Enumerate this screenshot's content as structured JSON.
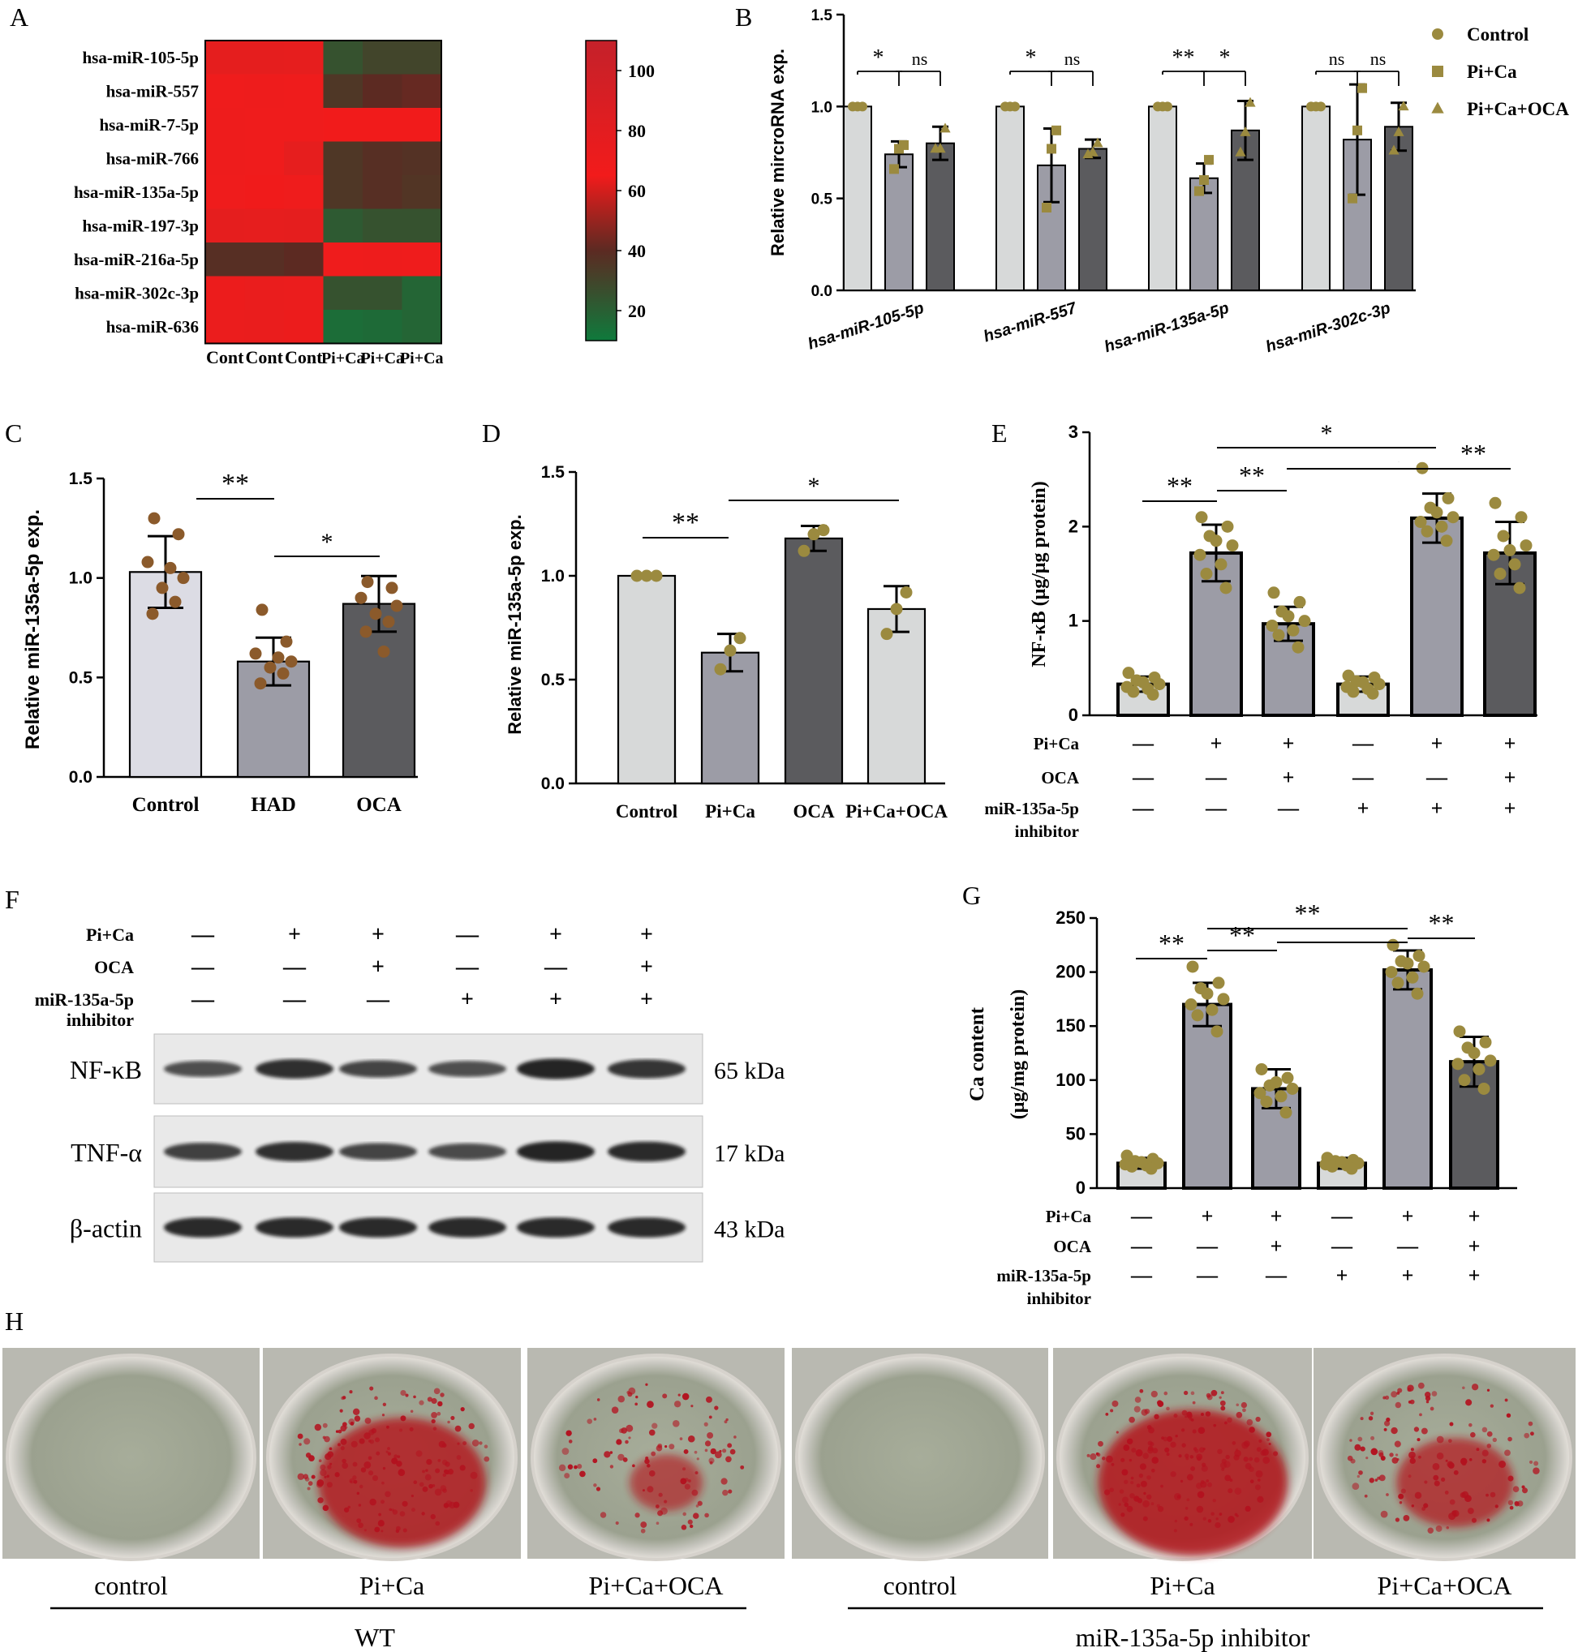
{
  "panel_letters": [
    "A",
    "B",
    "C",
    "D",
    "E",
    "F",
    "G",
    "H"
  ],
  "colors": {
    "bar_light": "#d7d9d9",
    "bar_mid": "#9c9ca6",
    "bar_dark": "#5b5b5e",
    "bar_control_c": "#dcdce4",
    "point_olive": "#9b8a3f",
    "point_brown": "#8b5a2b",
    "heat_low": "#0f7a3c",
    "heat_mid": "#5c2a22",
    "heat_high": "#f21b1b",
    "stain": "#b3121f"
  },
  "chart_data": [
    {
      "panel": "A",
      "type": "heatmap",
      "rows": [
        "hsa-miR-105-5p",
        "hsa-miR-557",
        "hsa-miR-7-5p",
        "hsa-miR-766",
        "hsa-miR-135a-5p",
        "hsa-miR-197-3p",
        "hsa-miR-216a-5p",
        "hsa-miR-302c-3p",
        "hsa-miR-636"
      ],
      "columns": [
        "Cont",
        "Cont",
        "Cont",
        "Pi+Ca",
        "Pi+Ca",
        "Pi+Ca"
      ],
      "values": [
        [
          108,
          106,
          104,
          25,
          30,
          30
        ],
        [
          80,
          82,
          78,
          35,
          40,
          42
        ],
        [
          82,
          78,
          80,
          72,
          72,
          72
        ],
        [
          82,
          80,
          105,
          35,
          38,
          37
        ],
        [
          78,
          76,
          80,
          35,
          38,
          36
        ],
        [
          108,
          104,
          106,
          22,
          25,
          25
        ],
        [
          38,
          38,
          40,
          78,
          82,
          78
        ],
        [
          88,
          92,
          90,
          25,
          25,
          18
        ],
        [
          90,
          92,
          88,
          15,
          16,
          18
        ]
      ],
      "colorbar_ticks": [
        "100",
        "80",
        "60",
        "40",
        "20"
      ],
      "colorbar_values": [
        100,
        80,
        60,
        40,
        20
      ],
      "range": [
        10,
        110
      ]
    },
    {
      "panel": "B",
      "type": "bar",
      "ylabel": "Relative mircroRNA exp.",
      "ylim": [
        0,
        1.5
      ],
      "yticks": [
        "0.0",
        "0.5",
        "1.0",
        "1.5"
      ],
      "categories": [
        "hsa-miR-105-5p",
        "hsa-miR-557",
        "hsa-miR-135a-5p",
        "hsa-miR-302c-3p"
      ],
      "series": [
        {
          "name": "Control",
          "values": [
            1.0,
            1.0,
            1.0,
            1.0
          ],
          "err": [
            0,
            0,
            0,
            0
          ],
          "points": [
            [
              1,
              1,
              1
            ],
            [
              1,
              1,
              1
            ],
            [
              1,
              1,
              1
            ],
            [
              1,
              1,
              1
            ]
          ]
        },
        {
          "name": "Pi+Ca",
          "values": [
            0.74,
            0.68,
            0.61,
            0.82
          ],
          "err": [
            0.07,
            0.2,
            0.08,
            0.3
          ],
          "points": [
            [
              0.66,
              0.77,
              0.79
            ],
            [
              0.45,
              0.77,
              0.87
            ],
            [
              0.54,
              0.6,
              0.71
            ],
            [
              0.5,
              0.87,
              1.1
            ]
          ]
        },
        {
          "name": "Pi+Ca+OCA",
          "values": [
            0.8,
            0.77,
            0.87,
            0.89
          ],
          "err": [
            0.09,
            0.05,
            0.16,
            0.13
          ],
          "points": [
            [
              0.77,
              0.77,
              0.88
            ],
            [
              0.74,
              0.75,
              0.8
            ],
            [
              0.75,
              0.86,
              1.02
            ],
            [
              0.76,
              0.86,
              1.0
            ]
          ]
        }
      ],
      "significance": [
        {
          "label": "*",
          "group": 0,
          "pair": [
            0,
            1
          ]
        },
        {
          "label": "ns",
          "group": 0,
          "pair": [
            1,
            2
          ]
        },
        {
          "label": "*",
          "group": 1,
          "pair": [
            0,
            1
          ]
        },
        {
          "label": "ns",
          "group": 1,
          "pair": [
            1,
            2
          ]
        },
        {
          "label": "**",
          "group": 2,
          "pair": [
            0,
            1
          ]
        },
        {
          "label": "*",
          "group": 2,
          "pair": [
            1,
            2
          ]
        },
        {
          "label": "ns",
          "group": 3,
          "pair": [
            0,
            1
          ]
        },
        {
          "label": "ns",
          "group": 3,
          "pair": [
            1,
            2
          ]
        }
      ],
      "legend": [
        "Control",
        "Pi+Ca",
        "Pi+Ca+OCA"
      ]
    },
    {
      "panel": "C",
      "type": "bar",
      "ylabel": "Relative miR-135a-5p exp.",
      "ylim": [
        0,
        1.5
      ],
      "yticks": [
        "0.0",
        "0.5",
        "1.0",
        "1.5"
      ],
      "categories": [
        "Control",
        "HAD",
        "OCA"
      ],
      "values": [
        1.03,
        0.58,
        0.87
      ],
      "err": [
        0.18,
        0.12,
        0.14
      ],
      "points": [
        [
          1.3,
          1.22,
          1.08,
          1.0,
          0.95,
          0.88,
          0.82,
          1.05
        ],
        [
          0.84,
          0.68,
          0.62,
          0.58,
          0.55,
          0.52,
          0.47,
          0.6
        ],
        [
          0.98,
          0.95,
          0.9,
          0.86,
          0.82,
          0.78,
          0.73,
          0.63
        ]
      ],
      "significance": [
        {
          "label": "**",
          "pair": [
            0,
            1
          ]
        },
        {
          "label": "*",
          "pair": [
            1,
            2
          ]
        }
      ]
    },
    {
      "panel": "D",
      "type": "bar",
      "ylabel": "Relative miR-135a-5p exp.",
      "ylim": [
        0,
        1.5
      ],
      "yticks": [
        "0.0",
        "0.5",
        "1.0",
        "1.5"
      ],
      "categories": [
        "Control",
        "Pi+Ca",
        "OCA",
        "Pi+Ca+OCA"
      ],
      "values": [
        1.0,
        0.63,
        1.18,
        0.84
      ],
      "err": [
        0,
        0.09,
        0.06,
        0.11
      ],
      "points": [
        [
          1,
          1,
          1
        ],
        [
          0.55,
          0.64,
          0.7
        ],
        [
          1.12,
          1.2,
          1.22
        ],
        [
          0.72,
          0.84,
          0.92
        ]
      ],
      "significance": [
        {
          "label": "**",
          "pair": [
            0,
            1
          ]
        },
        {
          "label": "*",
          "pair": [
            1,
            3
          ]
        }
      ]
    },
    {
      "panel": "E",
      "type": "bar",
      "ylabel": "NF-κB (μg/μg protein)",
      "ylim": [
        0,
        3
      ],
      "yticks": [
        "0",
        "1",
        "2",
        "3"
      ],
      "values": [
        0.33,
        1.72,
        0.97,
        0.33,
        2.09,
        1.72
      ],
      "err": [
        0.08,
        0.3,
        0.18,
        0.08,
        0.26,
        0.33
      ],
      "points": [
        [
          0.45,
          0.4,
          0.37,
          0.33,
          0.3,
          0.28,
          0.25,
          0.22,
          0.35
        ],
        [
          2.1,
          2.0,
          1.9,
          1.8,
          1.7,
          1.6,
          1.5,
          1.35,
          1.85
        ],
        [
          1.3,
          1.2,
          1.1,
          1.0,
          0.95,
          0.9,
          0.85,
          0.72,
          1.05
        ],
        [
          0.42,
          0.4,
          0.36,
          0.33,
          0.3,
          0.28,
          0.25,
          0.23,
          0.35
        ],
        [
          2.62,
          2.3,
          2.2,
          2.1,
          2.05,
          2.0,
          1.95,
          1.85,
          2.15
        ],
        [
          2.25,
          2.1,
          1.9,
          1.8,
          1.7,
          1.6,
          1.5,
          1.35,
          1.75
        ]
      ],
      "significance": [
        {
          "label": "**",
          "pair": [
            0,
            1
          ]
        },
        {
          "label": "**",
          "pair": [
            1,
            2
          ]
        },
        {
          "label": "*",
          "pair": [
            1,
            4
          ]
        },
        {
          "label": "**",
          "pair": [
            2,
            4
          ]
        },
        {
          "label": "**",
          "pair": [
            4,
            5
          ]
        }
      ],
      "conditions": {
        "labels": [
          "Pi+Ca",
          "OCA",
          "miR-135a-5p",
          "inhibitor"
        ],
        "rows": [
          [
            "—",
            "+",
            "+",
            "—",
            "+",
            "+"
          ],
          [
            "—",
            "—",
            "+",
            "—",
            "—",
            "+"
          ],
          [
            "—",
            "—",
            "—",
            "+",
            "+",
            "+"
          ]
        ]
      }
    },
    {
      "panel": "G",
      "type": "bar",
      "ylabel": "Ca content",
      "ylabel2": "(μg/mg protein)",
      "ylim": [
        0,
        250
      ],
      "yticks": [
        "0",
        "50",
        "100",
        "150",
        "200",
        "250"
      ],
      "values": [
        23,
        170,
        92,
        23,
        202,
        117
      ],
      "err": [
        5,
        20,
        18,
        5,
        18,
        23
      ],
      "points": [
        [
          30,
          27,
          25,
          23,
          22,
          21,
          20,
          18,
          24
        ],
        [
          205,
          190,
          185,
          175,
          170,
          165,
          160,
          145,
          180
        ],
        [
          110,
          102,
          95,
          92,
          88,
          85,
          80,
          70,
          98
        ],
        [
          28,
          26,
          25,
          23,
          22,
          21,
          20,
          18,
          24
        ],
        [
          225,
          215,
          210,
          205,
          200,
          195,
          190,
          180,
          208
        ],
        [
          145,
          135,
          130,
          118,
          115,
          110,
          100,
          92,
          125
        ]
      ],
      "significance": [
        {
          "label": "**",
          "pair": [
            0,
            1
          ]
        },
        {
          "label": "**",
          "pair": [
            1,
            2
          ]
        },
        {
          "label": "**",
          "pair": [
            1,
            4
          ]
        },
        {
          "label": "**",
          "pair": [
            4,
            5
          ]
        }
      ],
      "conditions": {
        "labels": [
          "Pi+Ca",
          "OCA",
          "miR-135a-5p",
          "inhibitor"
        ],
        "rows": [
          [
            "—",
            "+",
            "+",
            "—",
            "+",
            "+"
          ],
          [
            "—",
            "—",
            "+",
            "—",
            "—",
            "+"
          ],
          [
            "—",
            "—",
            "—",
            "+",
            "+",
            "+"
          ]
        ]
      }
    }
  ],
  "western_blot": {
    "condition_labels": [
      "Pi+Ca",
      "OCA",
      "miR-135a-5p",
      "inhibitor"
    ],
    "rows": [
      [
        "—",
        "+",
        "+",
        "—",
        "+",
        "+"
      ],
      [
        "—",
        "—",
        "+",
        "—",
        "—",
        "+"
      ],
      [
        "—",
        "—",
        "—",
        "+",
        "+",
        "+"
      ]
    ],
    "bands": [
      {
        "name": "NF-κB",
        "kda": "65 kDa",
        "intensity": [
          0.55,
          0.85,
          0.65,
          0.55,
          0.95,
          0.8
        ]
      },
      {
        "name": "TNF-α",
        "kda": "17 kDa",
        "intensity": [
          0.7,
          0.85,
          0.65,
          0.6,
          0.95,
          0.9
        ]
      },
      {
        "name": "β-actin",
        "kda": "43 kDa",
        "intensity": [
          0.9,
          0.9,
          0.9,
          0.9,
          0.9,
          0.9
        ]
      }
    ]
  },
  "stain_panel": {
    "wells": [
      {
        "label": "control",
        "stain": 0.0
      },
      {
        "label": "Pi+Ca",
        "stain": 0.8
      },
      {
        "label": "Pi+Ca+OCA",
        "stain": 0.35
      },
      {
        "label": "control",
        "stain": 0.0
      },
      {
        "label": "Pi+Ca",
        "stain": 0.9
      },
      {
        "label": "Pi+Ca+OCA",
        "stain": 0.55
      }
    ],
    "groups": [
      "WT",
      "miR-135a-5p inhibitor"
    ]
  }
}
